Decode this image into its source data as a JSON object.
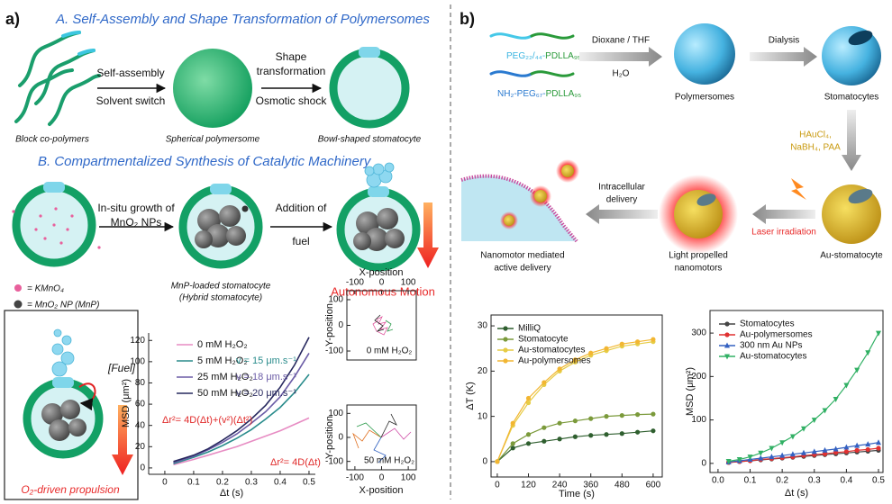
{
  "panel_a": {
    "label": "a)",
    "title_a": "A. Self-Assembly and Shape Transformation of Polymersomes",
    "step1": [
      "Self-assembly",
      "Solvent switch"
    ],
    "step2": [
      "Shape",
      "transformation",
      "Osmotic shock"
    ],
    "captions_a": [
      "Block co-polymers",
      "Spherical polymersome",
      "Bowl-shaped stomatocyte"
    ],
    "title_b": "B. Compartmentalized Synthesis of Catalytic Machinery",
    "step3": [
      "In-situ growth of",
      "MnO₂ NPs"
    ],
    "step4": [
      "Addition of",
      "fuel"
    ],
    "legend": [
      "= KMnO₄",
      "= MnO₂ NP (MnP)"
    ],
    "caption_b": [
      "MnP-loaded stomatocyte",
      "(Hybrid stomatocyte)"
    ],
    "motion": "Autonomous Motion",
    "fuel": "[Fuel]",
    "propulsion": "O₂-driven propulsion"
  },
  "panel_b": {
    "label": "b)",
    "polymer_1": [
      "PEG₂₂/₄₄-",
      "PDLLA₉₅"
    ],
    "polymer_2": [
      "NH₂-PEG₆₇-",
      "PDLLA₉₅"
    ],
    "step1": [
      "Dioxane / THF",
      "H₂O"
    ],
    "step2": "Dialysis",
    "step3": [
      "HAuCl₄,",
      "NaBH₄, PAA"
    ],
    "step4": "Laser irradiation",
    "step5": [
      "Intracellular",
      "delivery"
    ],
    "captions": [
      "Polymersomes",
      "Stomatocytes",
      "Au-stomatocyte",
      "Light propelled",
      "nanomotors",
      "Nanomotor mediated",
      "active delivery"
    ]
  },
  "chart_data": [
    {
      "type": "line",
      "x_label": "Δt (s)",
      "y_label": "MSD (μm²)",
      "x": [
        0.03,
        0.1,
        0.15,
        0.2,
        0.25,
        0.3,
        0.35,
        0.4,
        0.45,
        0.5
      ],
      "series": [
        {
          "name": "0 mM H₂O₂",
          "color": "#e78cc3",
          "values": [
            3,
            8,
            12,
            16,
            20,
            25,
            30,
            35,
            41,
            47
          ]
        },
        {
          "name": "5 mM H₂O₂",
          "color": "#2a8c8c",
          "values": [
            4,
            10,
            15,
            21,
            28,
            36,
            46,
            57,
            71,
            88
          ]
        },
        {
          "name": "25 mM H₂O₂",
          "color": "#6b5ca6",
          "values": [
            5,
            11,
            17,
            24,
            32,
            42,
            53,
            67,
            86,
            108
          ]
        },
        {
          "name": "50 mM H₂O₂",
          "color": "#27285e",
          "values": [
            6,
            12,
            18,
            26,
            35,
            46,
            59,
            76,
            97,
            123
          ]
        }
      ],
      "annotations": [
        "v = 15 μm.s⁻¹",
        "v = 18 μm.s⁻¹",
        "v = 20 μm.s⁻¹"
      ],
      "equations": [
        "Δr²= 4D(Δt)+(v²)(Δt²)",
        "Δr²= 4D(Δt)"
      ],
      "xlim": [
        -0.056,
        0.522
      ],
      "ylim": [
        -6,
        127
      ],
      "xticks": [
        0,
        0.1,
        0.2,
        0.3,
        0.4,
        0.5
      ],
      "yticks": [
        0,
        20,
        40,
        60,
        80,
        100,
        120
      ]
    },
    {
      "type": "line",
      "x_label": "Time (s)",
      "y_label": "ΔT (K)",
      "x": [
        0,
        60,
        120,
        180,
        240,
        300,
        360,
        420,
        480,
        540,
        600
      ],
      "series": [
        {
          "name": "MilliQ",
          "color": "#2f5f2f",
          "marker": "circle",
          "values": [
            0,
            3,
            4,
            4.5,
            5,
            5.5,
            5.8,
            6,
            6.2,
            6.5,
            6.8
          ]
        },
        {
          "name": "Stomatocyte",
          "color": "#7b9a3b",
          "marker": "circle",
          "values": [
            0,
            4,
            6,
            7.5,
            8.5,
            9,
            9.5,
            10,
            10.2,
            10.4,
            10.5
          ]
        },
        {
          "name": "Au-stomatocytes",
          "color": "#e6cc45",
          "marker": "circle",
          "values": [
            0,
            8,
            13,
            17,
            20,
            22,
            23.5,
            24.5,
            25.5,
            26,
            26.5
          ]
        },
        {
          "name": "Au-polymersomes",
          "color": "#f2b632",
          "marker": "circle",
          "values": [
            0,
            8.5,
            14,
            17.5,
            20.5,
            22.5,
            24,
            25,
            26,
            26.5,
            27
          ]
        }
      ],
      "xlim": [
        -24,
        635
      ],
      "ylim": [
        -3.4,
        32.4
      ],
      "xticks": [
        0,
        120,
        240,
        360,
        480,
        600
      ],
      "yticks": [
        0,
        10,
        20,
        30
      ]
    },
    {
      "type": "line",
      "x_label": "Δt (s)",
      "y_label": "MSD (μm²)",
      "x": [
        0.033,
        0.067,
        0.1,
        0.133,
        0.167,
        0.2,
        0.233,
        0.267,
        0.3,
        0.333,
        0.367,
        0.4,
        0.433,
        0.467,
        0.5
      ],
      "series": [
        {
          "name": "Stomatocytes",
          "color": "#444444",
          "marker": "circle",
          "values": [
            2,
            4,
            6,
            8,
            10,
            12,
            14,
            16,
            18,
            20,
            22,
            24,
            26,
            28,
            30
          ]
        },
        {
          "name": "Au-polymersomes",
          "color": "#e03131",
          "marker": "circle",
          "values": [
            2,
            4,
            6,
            9,
            11,
            13,
            15,
            18,
            20,
            22,
            25,
            27,
            30,
            32,
            35
          ]
        },
        {
          "name": "300 nm Au NPs",
          "color": "#3461c1",
          "marker": "triangle",
          "values": [
            3,
            6,
            9,
            12,
            15,
            18,
            21,
            24,
            27,
            30,
            33,
            37,
            41,
            44,
            48
          ]
        },
        {
          "name": "Au-stomatocytes",
          "color": "#31b064",
          "marker": "down-triangle",
          "values": [
            5,
            9,
            15,
            24,
            35,
            48,
            62,
            80,
            100,
            122,
            148,
            180,
            215,
            255,
            300
          ]
        }
      ],
      "xlim": [
        -0.025,
        0.514
      ],
      "ylim": [
        -21,
        352
      ],
      "xticks": [
        {
          "value": 0,
          "label": "0.0"
        },
        0.1,
        0.2,
        0.3,
        0.4,
        0.5
      ],
      "yticks": [
        0,
        100,
        200,
        300
      ]
    },
    {
      "type": "trajectory",
      "x_label": "X-position",
      "y_label": "Y-position",
      "annotation": "0 mM H₂O₂",
      "xlim": [
        -130,
        130
      ],
      "ylim": [
        -135,
        135
      ],
      "xticks": [
        -100,
        0,
        100
      ],
      "yticks": [
        -100,
        0,
        100
      ]
    },
    {
      "type": "trajectory",
      "x_label": "X-position",
      "y_label": "Y-position",
      "annotation": "50 mM H₂O₂",
      "xlim": [
        -130,
        130
      ],
      "ylim": [
        -135,
        135
      ],
      "xticks": [
        -100,
        0,
        100
      ],
      "yticks": [
        -100,
        0,
        100
      ]
    }
  ]
}
